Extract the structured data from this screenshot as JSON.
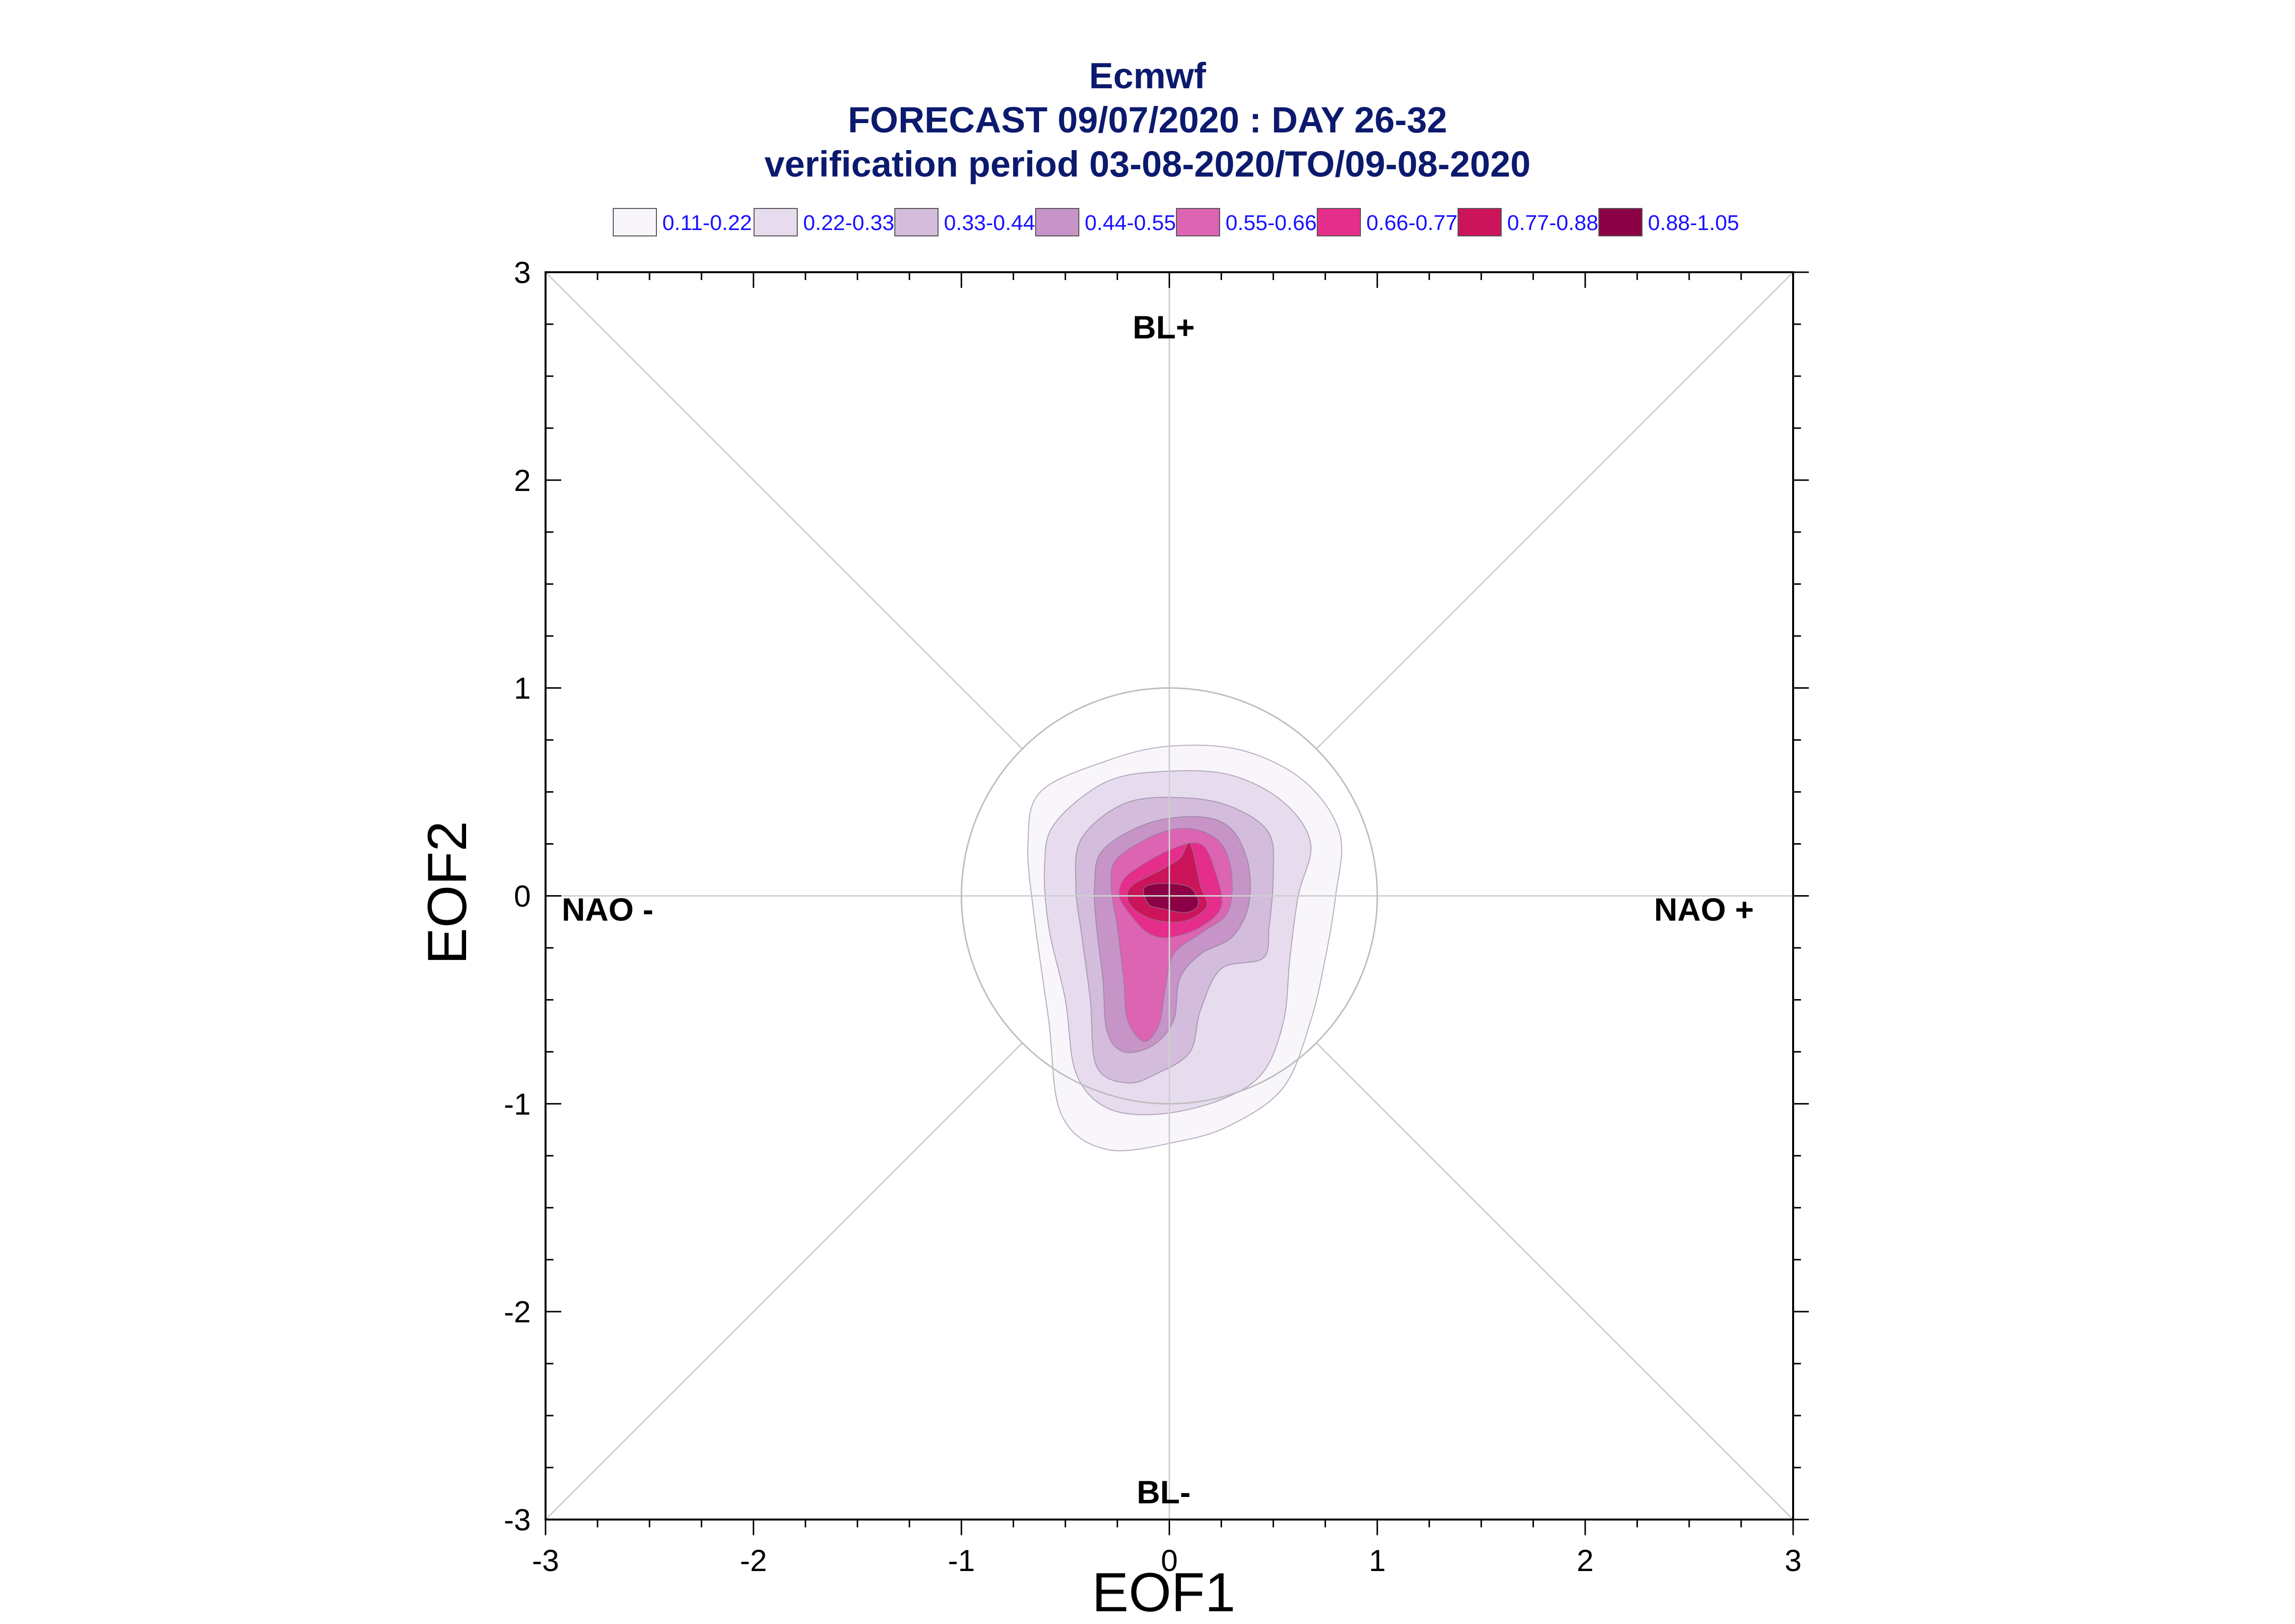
{
  "chart_data": {
    "type": "contour",
    "title": [
      "Ecmwf",
      "FORECAST 09/07/2020 : DAY 26-32",
      "verification period 03-08-2020/TO/09-08-2020"
    ],
    "xlabel": "EOF1",
    "ylabel": "EOF2",
    "xlim": [
      -3,
      3
    ],
    "ylim": [
      -3,
      3
    ],
    "xticks": [
      "-3",
      "-2",
      "-1",
      "0",
      "1",
      "2",
      "3"
    ],
    "yticks": [
      "3",
      "2",
      "1",
      "0",
      "-1",
      "-2",
      "-3"
    ],
    "reference_circle_radius": 1,
    "regime_labels": {
      "top": "BL+",
      "bottom": "BL-",
      "left": "NAO -",
      "right": "NAO +"
    },
    "legend": [
      {
        "label": "0.11-0.22",
        "color": "#f8f6fb"
      },
      {
        "label": "0.22-0.33",
        "color": "#e6dcee"
      },
      {
        "label": "0.33-0.44",
        "color": "#d3bcdc"
      },
      {
        "label": "0.44-0.55",
        "color": "#c794c8"
      },
      {
        "label": "0.55-0.66",
        "color": "#dd64b3"
      },
      {
        "label": "0.66-0.77",
        "color": "#e52d8b"
      },
      {
        "label": "0.77-0.88",
        "color": "#cc145a"
      },
      {
        "label": "0.88-1.05",
        "color": "#8c0046"
      }
    ],
    "contours": [
      {
        "level": "0.11-0.22",
        "points": [
          [
            -0.62,
            0.5
          ],
          [
            -0.3,
            0.65
          ],
          [
            0.0,
            0.72
          ],
          [
            0.35,
            0.7
          ],
          [
            0.65,
            0.55
          ],
          [
            0.82,
            0.3
          ],
          [
            0.8,
            0.0
          ],
          [
            0.75,
            -0.3
          ],
          [
            0.68,
            -0.6
          ],
          [
            0.55,
            -0.92
          ],
          [
            0.3,
            -1.1
          ],
          [
            0.05,
            -1.18
          ],
          [
            -0.3,
            -1.22
          ],
          [
            -0.52,
            -1.05
          ],
          [
            -0.58,
            -0.6
          ],
          [
            -0.65,
            -0.1
          ],
          [
            -0.68,
            0.25
          ]
        ]
      },
      {
        "level": "0.22-0.33",
        "points": [
          [
            -0.55,
            0.35
          ],
          [
            -0.3,
            0.55
          ],
          [
            0.0,
            0.6
          ],
          [
            0.3,
            0.58
          ],
          [
            0.55,
            0.45
          ],
          [
            0.68,
            0.25
          ],
          [
            0.62,
            0.0
          ],
          [
            0.58,
            -0.3
          ],
          [
            0.55,
            -0.6
          ],
          [
            0.45,
            -0.85
          ],
          [
            0.25,
            -0.98
          ],
          [
            -0.05,
            -1.05
          ],
          [
            -0.3,
            -1.02
          ],
          [
            -0.45,
            -0.85
          ],
          [
            -0.5,
            -0.5
          ],
          [
            -0.58,
            -0.15
          ],
          [
            -0.6,
            0.15
          ]
        ]
      },
      {
        "level": "0.33-0.44",
        "points": [
          [
            -0.42,
            0.28
          ],
          [
            -0.2,
            0.45
          ],
          [
            0.1,
            0.47
          ],
          [
            0.32,
            0.42
          ],
          [
            0.48,
            0.3
          ],
          [
            0.5,
            0.1
          ],
          [
            0.48,
            -0.15
          ],
          [
            0.45,
            -0.3
          ],
          [
            0.25,
            -0.35
          ],
          [
            0.15,
            -0.55
          ],
          [
            0.1,
            -0.75
          ],
          [
            -0.05,
            -0.85
          ],
          [
            -0.2,
            -0.9
          ],
          [
            -0.35,
            -0.82
          ],
          [
            -0.38,
            -0.5
          ],
          [
            -0.42,
            -0.2
          ],
          [
            -0.45,
            0.05
          ]
        ]
      },
      {
        "level": "0.44-0.55",
        "points": [
          [
            -0.32,
            0.22
          ],
          [
            -0.1,
            0.35
          ],
          [
            0.15,
            0.38
          ],
          [
            0.3,
            0.32
          ],
          [
            0.38,
            0.15
          ],
          [
            0.38,
            -0.05
          ],
          [
            0.3,
            -0.2
          ],
          [
            0.15,
            -0.28
          ],
          [
            0.05,
            -0.4
          ],
          [
            0.02,
            -0.6
          ],
          [
            -0.08,
            -0.72
          ],
          [
            -0.22,
            -0.75
          ],
          [
            -0.3,
            -0.65
          ],
          [
            -0.32,
            -0.4
          ],
          [
            -0.35,
            -0.15
          ],
          [
            -0.36,
            0.05
          ]
        ]
      },
      {
        "level": "0.55-0.66",
        "points": [
          [
            -0.25,
            0.18
          ],
          [
            -0.05,
            0.3
          ],
          [
            0.12,
            0.32
          ],
          [
            0.25,
            0.25
          ],
          [
            0.3,
            0.1
          ],
          [
            0.28,
            -0.08
          ],
          [
            0.15,
            -0.18
          ],
          [
            0.02,
            -0.28
          ],
          [
            -0.02,
            -0.45
          ],
          [
            -0.05,
            -0.62
          ],
          [
            -0.12,
            -0.7
          ],
          [
            -0.2,
            -0.6
          ],
          [
            -0.22,
            -0.4
          ],
          [
            -0.25,
            -0.15
          ],
          [
            -0.28,
            0.05
          ]
        ]
      },
      {
        "level": "0.66-0.77",
        "points": [
          [
            -0.2,
            0.1
          ],
          [
            0.0,
            0.22
          ],
          [
            0.15,
            0.25
          ],
          [
            0.22,
            0.12
          ],
          [
            0.25,
            -0.05
          ],
          [
            0.15,
            -0.15
          ],
          [
            0.0,
            -0.2
          ],
          [
            -0.1,
            -0.18
          ],
          [
            -0.18,
            -0.1
          ],
          [
            -0.24,
            0.0
          ]
        ]
      },
      {
        "level": "0.77-0.88",
        "points": [
          [
            -0.18,
            0.05
          ],
          [
            -0.05,
            0.12
          ],
          [
            0.05,
            0.18
          ],
          [
            0.1,
            0.25
          ],
          [
            0.15,
            0.05
          ],
          [
            0.18,
            -0.05
          ],
          [
            0.08,
            -0.12
          ],
          [
            -0.05,
            -0.12
          ],
          [
            -0.15,
            -0.08
          ],
          [
            -0.2,
            -0.02
          ]
        ]
      },
      {
        "level": "0.88-1.05",
        "points": [
          [
            -0.12,
            0.04
          ],
          [
            -0.02,
            0.06
          ],
          [
            0.1,
            0.04
          ],
          [
            0.14,
            -0.04
          ],
          [
            0.08,
            -0.08
          ],
          [
            -0.04,
            -0.06
          ],
          [
            -0.1,
            -0.04
          ]
        ]
      }
    ]
  }
}
